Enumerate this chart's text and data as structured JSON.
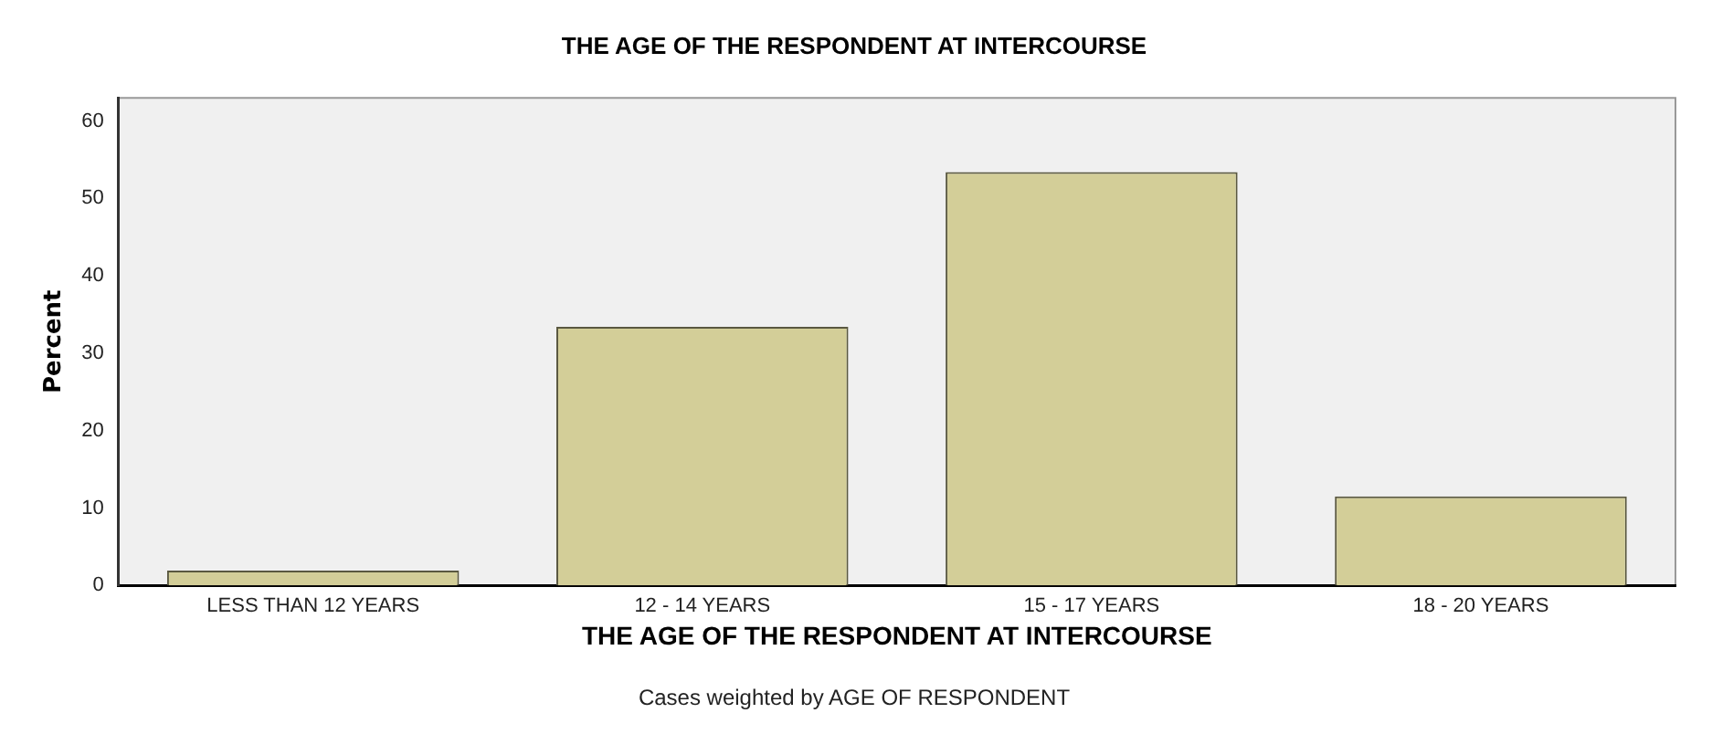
{
  "chart_data": {
    "type": "bar",
    "title": "THE AGE OF THE RESPONDENT AT INTERCOURSE",
    "xlabel": "THE AGE OF THE RESPONDENT AT INTERCOURSE",
    "ylabel": "Percent",
    "categories": [
      "LESS THAN 12 YEARS",
      "12 - 14 YEARS",
      "15 - 17 YEARS",
      "18 - 20 YEARS"
    ],
    "values": [
      1.9,
      33.4,
      53.4,
      11.5
    ],
    "color": "#d3ce98",
    "ylim": [
      0,
      63
    ],
    "yticks": [
      0,
      10,
      20,
      30,
      40,
      50,
      60
    ],
    "grid": false,
    "legend": false,
    "annotations": [
      "Cases weighted by AGE OF RESPONDENT"
    ]
  }
}
